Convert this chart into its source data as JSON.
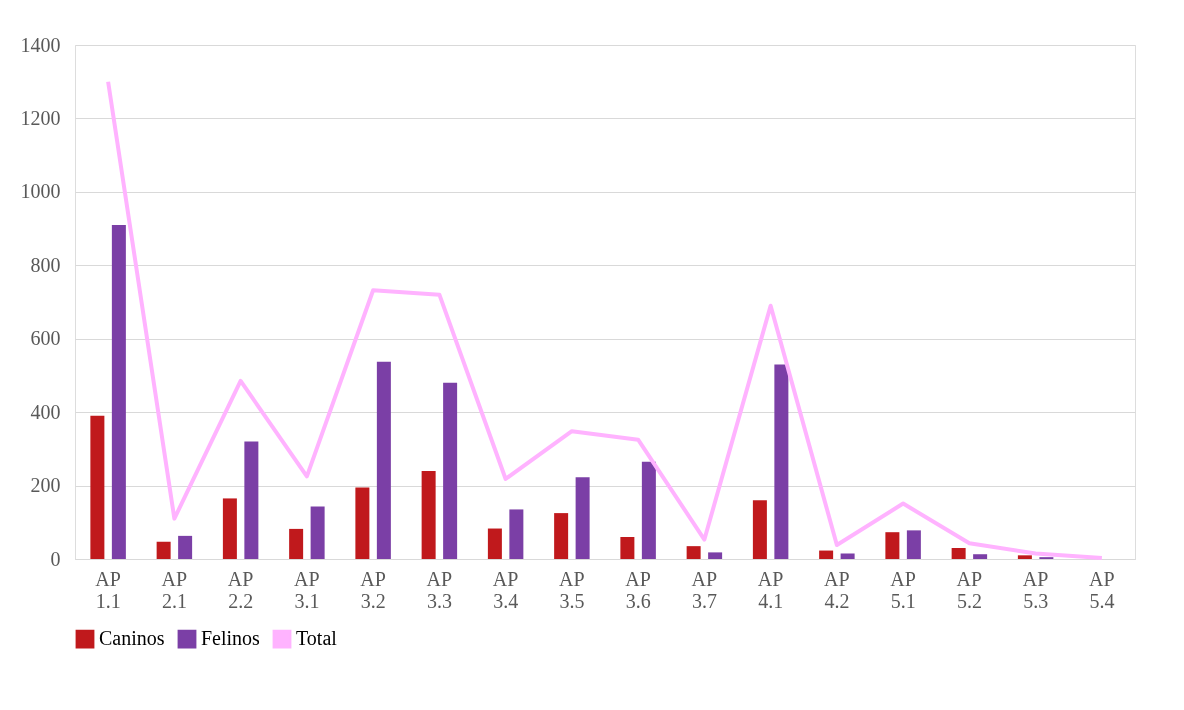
{
  "chart_data": {
    "type": "bar",
    "categories": [
      "AP 1.1",
      "AP 2.1",
      "AP 2.2",
      "AP 3.1",
      "AP 3.2",
      "AP 3.3",
      "AP 3.4",
      "AP 3.5",
      "AP 3.6",
      "AP 3.7",
      "AP 4.1",
      "AP 4.2",
      "AP 5.1",
      "AP 5.2",
      "AP 5.3",
      "AP 5.4"
    ],
    "series": [
      {
        "name": "Caninos",
        "type": "bar",
        "color": "#c0191c",
        "values": [
          390,
          47,
          165,
          82,
          195,
          240,
          83,
          125,
          60,
          35,
          160,
          23,
          73,
          30,
          10,
          null
        ]
      },
      {
        "name": "Felinos",
        "type": "bar",
        "color": "#7b3fa6",
        "values": [
          910,
          63,
          320,
          143,
          537,
          480,
          135,
          223,
          265,
          18,
          530,
          15,
          78,
          13,
          5,
          null
        ]
      },
      {
        "name": "Total",
        "type": "line",
        "color": "#ffb3ff",
        "values": [
          1300,
          110,
          485,
          225,
          732,
          720,
          218,
          348,
          325,
          53,
          690,
          38,
          151,
          43,
          15,
          3
        ]
      }
    ],
    "ylim": [
      0,
      1400
    ],
    "yticks": [
      0,
      200,
      400,
      600,
      800,
      1000,
      1200,
      1400
    ],
    "grid": "y",
    "legend": "bottom",
    "marker": "none",
    "line_style": "solid"
  }
}
